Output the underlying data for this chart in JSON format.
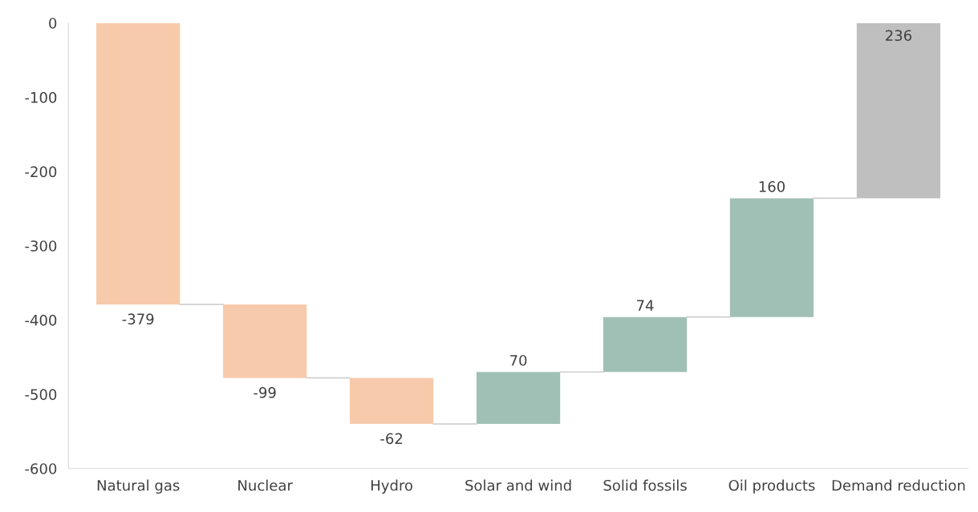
{
  "chart_data": {
    "type": "bar",
    "categories": [
      "Natural gas",
      "Nuclear",
      "Hydro",
      "Solar and wind",
      "Solid fossils",
      "Oil products",
      "Demand reduction"
    ],
    "values": [
      -379,
      -99,
      -62,
      70,
      74,
      160,
      236
    ],
    "base": [
      0,
      -379,
      -478,
      -540,
      -470,
      -396,
      -236
    ],
    "colors": [
      "#f7caab",
      "#f7caab",
      "#f7caab",
      "#a1c0b5",
      "#a1c0b5",
      "#a1c0b5",
      "#bfbfbf"
    ],
    "data_labels": true,
    "ylim": [
      -600,
      0
    ],
    "yticks": [
      0,
      -100,
      -200,
      -300,
      -400,
      -500,
      -600
    ],
    "grid": false,
    "legend": false
  }
}
